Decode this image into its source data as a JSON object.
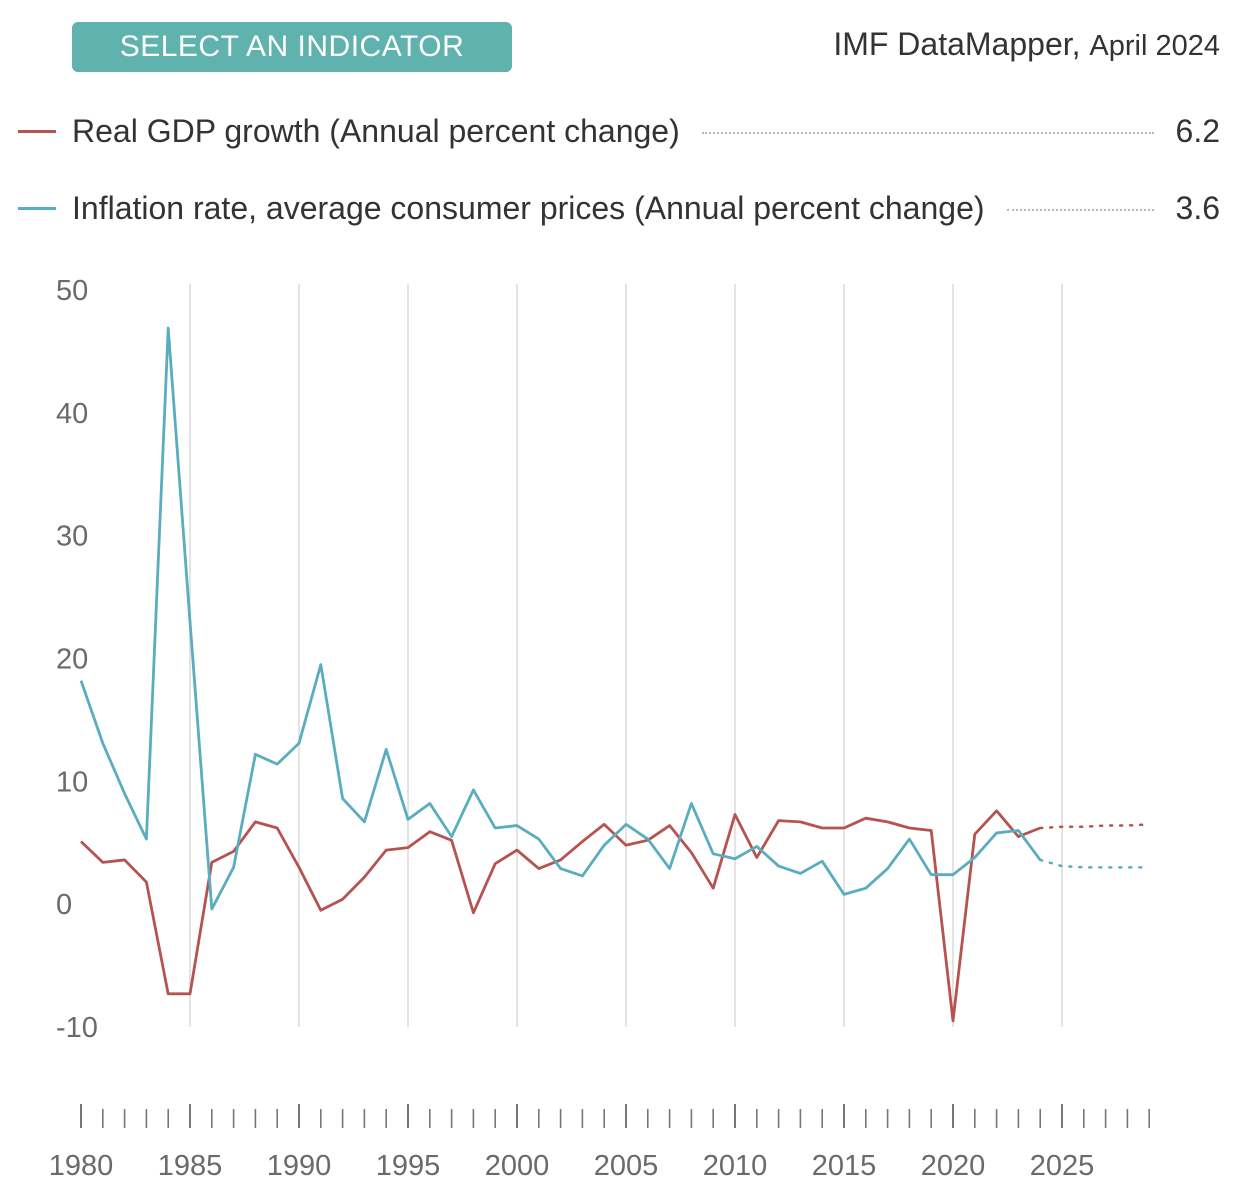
{
  "header": {
    "indicator_button": "SELECT AN INDICATOR",
    "source_name": "IMF DataMapper,",
    "source_date": "April 2024"
  },
  "legend": [
    {
      "label": "Real GDP growth (Annual percent change)",
      "value": "6.2",
      "color": "#b5534f"
    },
    {
      "label": "Inflation rate, average consumer prices (Annual percent change)",
      "value": "3.6",
      "color": "#5aadbf"
    }
  ],
  "chart_data": {
    "type": "line",
    "xlim": [
      1980,
      2029
    ],
    "ylim": [
      -10,
      50
    ],
    "y_ticks": [
      "50",
      "40",
      "30",
      "20",
      "10",
      "0",
      "-10"
    ],
    "x_tick_labels": [
      "1980",
      "1985",
      "1990",
      "1995",
      "2000",
      "2005",
      "2010",
      "2015",
      "2020",
      "2025"
    ],
    "grid": "vertical",
    "series": [
      {
        "name": "Real GDP growth (Annual percent change)",
        "color": "#b5534f",
        "x": [
          1980,
          1981,
          1982,
          1983,
          1984,
          1985,
          1986,
          1987,
          1988,
          1989,
          1990,
          1991,
          1992,
          1993,
          1994,
          1995,
          1996,
          1997,
          1998,
          1999,
          2000,
          2001,
          2002,
          2003,
          2004,
          2005,
          2006,
          2007,
          2008,
          2009,
          2010,
          2011,
          2012,
          2013,
          2014,
          2015,
          2016,
          2017,
          2018,
          2019,
          2020,
          2021,
          2022,
          2023,
          2024
        ],
        "values": [
          5.1,
          3.4,
          3.6,
          1.8,
          -7.3,
          -7.3,
          3.4,
          4.3,
          6.7,
          6.2,
          3.0,
          -0.5,
          0.4,
          2.2,
          4.4,
          4.6,
          5.9,
          5.2,
          -0.7,
          3.3,
          4.4,
          2.9,
          3.6,
          5.1,
          6.5,
          4.8,
          5.2,
          6.4,
          4.2,
          1.3,
          7.3,
          3.8,
          6.8,
          6.7,
          6.2,
          6.2,
          7.0,
          6.7,
          6.2,
          6.0,
          -9.5,
          5.7,
          7.6,
          5.5,
          6.2
        ]
      },
      {
        "name": "Inflation rate, average consumer prices (Annual percent change)",
        "color": "#5aadbf",
        "x": [
          1980,
          1981,
          1982,
          1983,
          1984,
          1985,
          1986,
          1987,
          1988,
          1989,
          1990,
          1991,
          1992,
          1993,
          1994,
          1995,
          1996,
          1997,
          1998,
          1999,
          2000,
          2001,
          2002,
          2003,
          2004,
          2005,
          2006,
          2007,
          2008,
          2009,
          2010,
          2011,
          2012,
          2013,
          2014,
          2015,
          2016,
          2017,
          2018,
          2019,
          2020,
          2021,
          2022,
          2023,
          2024
        ],
        "values": [
          18.2,
          13.1,
          9.0,
          5.3,
          46.9,
          23.0,
          -0.4,
          3.0,
          12.2,
          11.4,
          13.1,
          19.5,
          8.6,
          6.7,
          12.6,
          6.9,
          8.2,
          5.5,
          9.3,
          6.2,
          6.4,
          5.3,
          2.9,
          2.3,
          4.8,
          6.5,
          5.3,
          2.9,
          8.2,
          4.1,
          3.7,
          4.7,
          3.1,
          2.5,
          3.5,
          0.8,
          1.3,
          2.9,
          5.3,
          2.4,
          2.4,
          3.8,
          5.8,
          6.0,
          3.6
        ]
      }
    ],
    "projections": [
      {
        "color": "#b5534f",
        "x": [
          2024,
          2025,
          2026,
          2027,
          2028,
          2029
        ],
        "values": [
          6.2,
          6.3,
          6.3,
          6.4,
          6.4,
          6.5
        ]
      },
      {
        "color": "#5aadbf",
        "x": [
          2024,
          2025,
          2026,
          2027,
          2028,
          2029
        ],
        "values": [
          3.6,
          3.1,
          3.0,
          3.0,
          3.0,
          3.0
        ]
      }
    ]
  }
}
